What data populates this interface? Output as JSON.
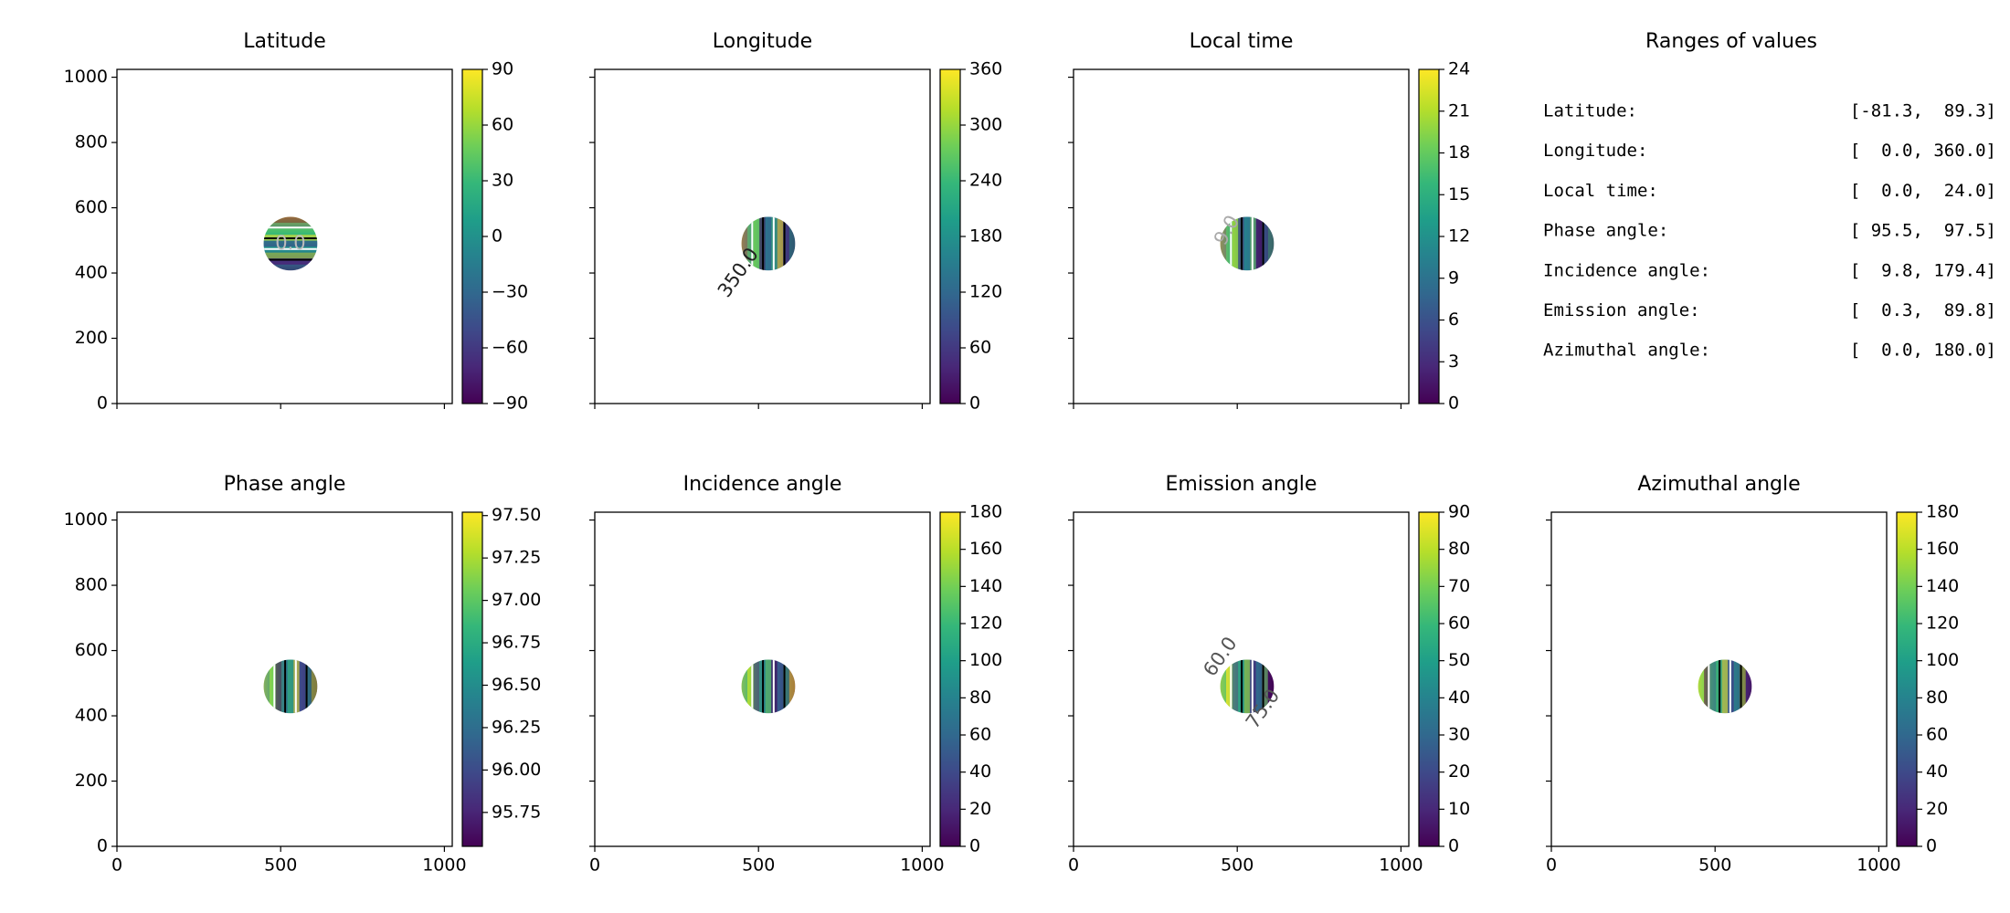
{
  "chart_data": [
    {
      "type": "image",
      "title": "Latitude",
      "xlim": [
        0,
        1024
      ],
      "ylim": [
        0,
        1024
      ],
      "xticks": [
        0,
        500,
        1000
      ],
      "yticks": [
        0,
        200,
        400,
        600,
        800,
        1000
      ],
      "x_labels": false,
      "y_labels": true,
      "colormap": "viridis",
      "clim": [
        -90,
        90
      ],
      "cticks": [
        {
          "value": -90,
          "label": "−90"
        },
        {
          "value": -60,
          "label": "−60"
        },
        {
          "value": -30,
          "label": "−30"
        },
        0,
        30,
        60,
        90
      ],
      "annotations": [
        "0.0"
      ]
    },
    {
      "type": "image",
      "title": "Longitude",
      "xlim": [
        0,
        1024
      ],
      "ylim": [
        0,
        1024
      ],
      "xticks": [
        0,
        500,
        1000
      ],
      "yticks": [
        0,
        200,
        400,
        600,
        800,
        1000
      ],
      "x_labels": false,
      "y_labels": false,
      "colormap": "viridis",
      "clim": [
        0,
        360
      ],
      "cticks": [
        0,
        60,
        120,
        180,
        240,
        300,
        360
      ],
      "annotations": [
        "350.0"
      ]
    },
    {
      "type": "image",
      "title": "Local time",
      "xlim": [
        0,
        1024
      ],
      "ylim": [
        0,
        1024
      ],
      "xticks": [
        0,
        500,
        1000
      ],
      "yticks": [
        0,
        200,
        400,
        600,
        800,
        1000
      ],
      "x_labels": false,
      "y_labels": false,
      "colormap": "viridis",
      "clim": [
        0,
        24
      ],
      "cticks": [
        0,
        3,
        6,
        9,
        12,
        15,
        18,
        21,
        24
      ],
      "annotations": [
        "9.0"
      ]
    },
    {
      "type": "text",
      "title": "Ranges of values",
      "rows": [
        [
          "Latitude:",
          "[-81.3,  89.3]"
        ],
        [
          "Longitude:",
          "[  0.0, 360.0]"
        ],
        [
          "Local time:",
          "[  0.0,  24.0]"
        ],
        [
          "Phase angle:",
          "[ 95.5,  97.5]"
        ],
        [
          "Incidence angle:",
          "[  9.8, 179.4]"
        ],
        [
          "Emission angle:",
          "[  0.3,  89.8]"
        ],
        [
          "Azimuthal angle:",
          "[  0.0, 180.0]"
        ]
      ]
    },
    {
      "type": "image",
      "title": "Phase angle",
      "xlim": [
        0,
        1024
      ],
      "ylim": [
        0,
        1024
      ],
      "xticks": [
        0,
        500,
        1000
      ],
      "yticks": [
        0,
        200,
        400,
        600,
        800,
        1000
      ],
      "x_labels": true,
      "y_labels": true,
      "colormap": "viridis",
      "clim": [
        95.55,
        97.52
      ],
      "cticks": [
        95.75,
        {
          "value": 96,
          "label": "96.00"
        },
        96.25,
        {
          "value": 96.5,
          "label": "96.50"
        },
        96.75,
        {
          "value": 97,
          "label": "97.00"
        },
        97.25,
        {
          "value": 97.5,
          "label": "97.50"
        }
      ],
      "annotations": []
    },
    {
      "type": "image",
      "title": "Incidence angle",
      "xlim": [
        0,
        1024
      ],
      "ylim": [
        0,
        1024
      ],
      "xticks": [
        0,
        500,
        1000
      ],
      "yticks": [
        0,
        200,
        400,
        600,
        800,
        1000
      ],
      "x_labels": true,
      "y_labels": false,
      "colormap": "viridis",
      "clim": [
        0,
        180
      ],
      "cticks": [
        0,
        20,
        40,
        60,
        80,
        100,
        120,
        140,
        160,
        180
      ],
      "annotations": []
    },
    {
      "type": "image",
      "title": "Emission angle",
      "xlim": [
        0,
        1024
      ],
      "ylim": [
        0,
        1024
      ],
      "xticks": [
        0,
        500,
        1000
      ],
      "yticks": [
        0,
        200,
        400,
        600,
        800,
        1000
      ],
      "x_labels": true,
      "y_labels": false,
      "colormap": "viridis",
      "clim": [
        0,
        90
      ],
      "cticks": [
        0,
        10,
        20,
        30,
        40,
        50,
        60,
        70,
        80,
        90
      ],
      "annotations": [
        "60.0",
        "75.0"
      ]
    },
    {
      "type": "image",
      "title": "Azimuthal angle",
      "xlim": [
        0,
        1024
      ],
      "ylim": [
        0,
        1024
      ],
      "xticks": [
        0,
        500,
        1000
      ],
      "yticks": [
        0,
        200,
        400,
        600,
        800,
        1000
      ],
      "x_labels": true,
      "y_labels": false,
      "colormap": "viridis",
      "clim": [
        0,
        180
      ],
      "cticks": [
        0,
        20,
        40,
        60,
        80,
        100,
        120,
        140,
        160,
        180
      ],
      "annotations": []
    }
  ]
}
